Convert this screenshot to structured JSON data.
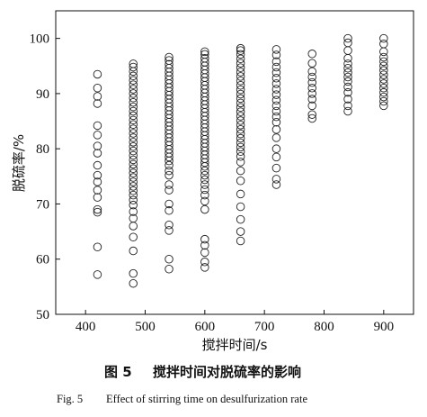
{
  "chart_data": {
    "type": "scatter",
    "xlabel": "搅拌时间/s",
    "ylabel": "脱硫率/%",
    "xlim": [
      350,
      950
    ],
    "ylim": [
      50,
      105
    ],
    "xticks": [
      "400",
      "500",
      "600",
      "700",
      "800",
      "900"
    ],
    "yticks": [
      "50",
      "60",
      "70",
      "80",
      "90",
      "100"
    ],
    "grid": false,
    "marker": "open-circle",
    "series": [
      {
        "points": [
          [
            420,
            57.2
          ],
          [
            420,
            62.2
          ],
          [
            420,
            68.5
          ],
          [
            420,
            69.0
          ],
          [
            420,
            71.2
          ],
          [
            420,
            72.5
          ],
          [
            420,
            74.0
          ],
          [
            420,
            75.2
          ],
          [
            420,
            77.0
          ],
          [
            420,
            79.2
          ],
          [
            420,
            80.5
          ],
          [
            420,
            82.5
          ],
          [
            420,
            84.2
          ],
          [
            420,
            88.2
          ],
          [
            420,
            89.5
          ],
          [
            420,
            91.0
          ],
          [
            420,
            93.5
          ],
          [
            480,
            55.6
          ],
          [
            480,
            57.4
          ],
          [
            480,
            61.5
          ],
          [
            480,
            64.0
          ],
          [
            480,
            66.0
          ],
          [
            480,
            67.4
          ],
          [
            480,
            68.6
          ],
          [
            480,
            69.8
          ],
          [
            480,
            70.7
          ],
          [
            480,
            71.6
          ],
          [
            480,
            72.4
          ],
          [
            480,
            73.2
          ],
          [
            480,
            74.0
          ],
          [
            480,
            74.8
          ],
          [
            480,
            75.6
          ],
          [
            480,
            76.4
          ],
          [
            480,
            77.2
          ],
          [
            480,
            78.0
          ],
          [
            480,
            78.8
          ],
          [
            480,
            79.6
          ],
          [
            480,
            80.4
          ],
          [
            480,
            81.2
          ],
          [
            480,
            82.0
          ],
          [
            480,
            82.8
          ],
          [
            480,
            83.6
          ],
          [
            480,
            84.4
          ],
          [
            480,
            85.2
          ],
          [
            480,
            86.0
          ],
          [
            480,
            86.8
          ],
          [
            480,
            87.6
          ],
          [
            480,
            88.4
          ],
          [
            480,
            89.2
          ],
          [
            480,
            90.0
          ],
          [
            480,
            90.8
          ],
          [
            480,
            91.6
          ],
          [
            480,
            92.4
          ],
          [
            480,
            93.2
          ],
          [
            480,
            94.0
          ],
          [
            480,
            94.8
          ],
          [
            480,
            95.4
          ],
          [
            540,
            58.2
          ],
          [
            540,
            60.0
          ],
          [
            540,
            65.2
          ],
          [
            540,
            66.2
          ],
          [
            540,
            68.8
          ],
          [
            540,
            70.0
          ],
          [
            540,
            72.5
          ],
          [
            540,
            73.5
          ],
          [
            540,
            75.2
          ],
          [
            540,
            76.0
          ],
          [
            540,
            77.0
          ],
          [
            540,
            77.8
          ],
          [
            540,
            78.5
          ],
          [
            540,
            79.2
          ],
          [
            540,
            79.9
          ],
          [
            540,
            80.6
          ],
          [
            540,
            81.3
          ],
          [
            540,
            82.0
          ],
          [
            540,
            82.7
          ],
          [
            540,
            83.4
          ],
          [
            540,
            84.1
          ],
          [
            540,
            84.8
          ],
          [
            540,
            85.5
          ],
          [
            540,
            86.2
          ],
          [
            540,
            86.9
          ],
          [
            540,
            87.6
          ],
          [
            540,
            88.3
          ],
          [
            540,
            89.0
          ],
          [
            540,
            89.7
          ],
          [
            540,
            90.4
          ],
          [
            540,
            91.1
          ],
          [
            540,
            91.8
          ],
          [
            540,
            92.5
          ],
          [
            540,
            93.2
          ],
          [
            540,
            93.9
          ],
          [
            540,
            94.6
          ],
          [
            540,
            95.3
          ],
          [
            540,
            96.0
          ],
          [
            540,
            96.6
          ],
          [
            600,
            58.5
          ],
          [
            600,
            59.5
          ],
          [
            600,
            61.2
          ],
          [
            600,
            62.5
          ],
          [
            600,
            63.6
          ],
          [
            600,
            69.0
          ],
          [
            600,
            70.5
          ],
          [
            600,
            71.6
          ],
          [
            600,
            72.6
          ],
          [
            600,
            73.5
          ],
          [
            600,
            74.4
          ],
          [
            600,
            75.2
          ],
          [
            600,
            76.0
          ],
          [
            600,
            76.8
          ],
          [
            600,
            77.5
          ],
          [
            600,
            78.2
          ],
          [
            600,
            78.9
          ],
          [
            600,
            79.6
          ],
          [
            600,
            80.3
          ],
          [
            600,
            81.0
          ],
          [
            600,
            81.7
          ],
          [
            600,
            82.4
          ],
          [
            600,
            83.1
          ],
          [
            600,
            83.8
          ],
          [
            600,
            84.5
          ],
          [
            600,
            85.2
          ],
          [
            600,
            85.9
          ],
          [
            600,
            86.6
          ],
          [
            600,
            87.3
          ],
          [
            600,
            88.0
          ],
          [
            600,
            88.7
          ],
          [
            600,
            89.4
          ],
          [
            600,
            90.1
          ],
          [
            600,
            90.8
          ],
          [
            600,
            91.5
          ],
          [
            600,
            92.2
          ],
          [
            600,
            92.9
          ],
          [
            600,
            93.6
          ],
          [
            600,
            94.3
          ],
          [
            600,
            95.0
          ],
          [
            600,
            95.7
          ],
          [
            600,
            96.4
          ],
          [
            600,
            97.1
          ],
          [
            600,
            97.6
          ],
          [
            660,
            63.3
          ],
          [
            660,
            65.0
          ],
          [
            660,
            67.2
          ],
          [
            660,
            69.5
          ],
          [
            660,
            71.8
          ],
          [
            660,
            74.2
          ],
          [
            660,
            76.0
          ],
          [
            660,
            77.6
          ],
          [
            660,
            78.6
          ],
          [
            660,
            79.5
          ],
          [
            660,
            80.3
          ],
          [
            660,
            81.1
          ],
          [
            660,
            81.9
          ],
          [
            660,
            82.7
          ],
          [
            660,
            83.5
          ],
          [
            660,
            84.3
          ],
          [
            660,
            85.1
          ],
          [
            660,
            85.9
          ],
          [
            660,
            86.7
          ],
          [
            660,
            87.5
          ],
          [
            660,
            88.3
          ],
          [
            660,
            89.1
          ],
          [
            660,
            89.9
          ],
          [
            660,
            90.7
          ],
          [
            660,
            91.5
          ],
          [
            660,
            92.3
          ],
          [
            660,
            93.1
          ],
          [
            660,
            93.9
          ],
          [
            660,
            94.7
          ],
          [
            660,
            95.5
          ],
          [
            660,
            96.3
          ],
          [
            660,
            97.1
          ],
          [
            660,
            97.8
          ],
          [
            660,
            98.2
          ],
          [
            720,
            73.5
          ],
          [
            720,
            74.5
          ],
          [
            720,
            76.5
          ],
          [
            720,
            78.5
          ],
          [
            720,
            80.0
          ],
          [
            720,
            82.0
          ],
          [
            720,
            83.5
          ],
          [
            720,
            84.8
          ],
          [
            720,
            85.8
          ],
          [
            720,
            86.8
          ],
          [
            720,
            87.8
          ],
          [
            720,
            88.8
          ],
          [
            720,
            89.8
          ],
          [
            720,
            90.8
          ],
          [
            720,
            91.8
          ],
          [
            720,
            92.8
          ],
          [
            720,
            93.8
          ],
          [
            720,
            94.8
          ],
          [
            720,
            95.8
          ],
          [
            720,
            97.0
          ],
          [
            720,
            98.0
          ],
          [
            780,
            85.5
          ],
          [
            780,
            86.2
          ],
          [
            780,
            87.8
          ],
          [
            780,
            89.0
          ],
          [
            780,
            90.0
          ],
          [
            780,
            91.0
          ],
          [
            780,
            92.0
          ],
          [
            780,
            93.0
          ],
          [
            780,
            94.0
          ],
          [
            780,
            95.5
          ],
          [
            780,
            97.2
          ],
          [
            840,
            86.8
          ],
          [
            840,
            87.8
          ],
          [
            840,
            89.0
          ],
          [
            840,
            90.2
          ],
          [
            840,
            91.2
          ],
          [
            840,
            92.2
          ],
          [
            840,
            93.0
          ],
          [
            840,
            93.8
          ],
          [
            840,
            94.6
          ],
          [
            840,
            95.4
          ],
          [
            840,
            96.4
          ],
          [
            840,
            97.8
          ],
          [
            840,
            99.2
          ],
          [
            840,
            100.0
          ],
          [
            900,
            87.8
          ],
          [
            900,
            88.6
          ],
          [
            900,
            89.4
          ],
          [
            900,
            90.2
          ],
          [
            900,
            91.0
          ],
          [
            900,
            91.8
          ],
          [
            900,
            92.6
          ],
          [
            900,
            93.4
          ],
          [
            900,
            94.2
          ],
          [
            900,
            95.0
          ],
          [
            900,
            95.8
          ],
          [
            900,
            96.6
          ],
          [
            900,
            97.6
          ],
          [
            900,
            99.0
          ],
          [
            900,
            100.0
          ]
        ]
      }
    ]
  },
  "caption": {
    "cn_label": "图 5",
    "cn_title": "搅拌时间对脱硫率的影响",
    "en_label": "Fig. 5",
    "en_title": "Effect of stirring time on desulfurization rate"
  }
}
